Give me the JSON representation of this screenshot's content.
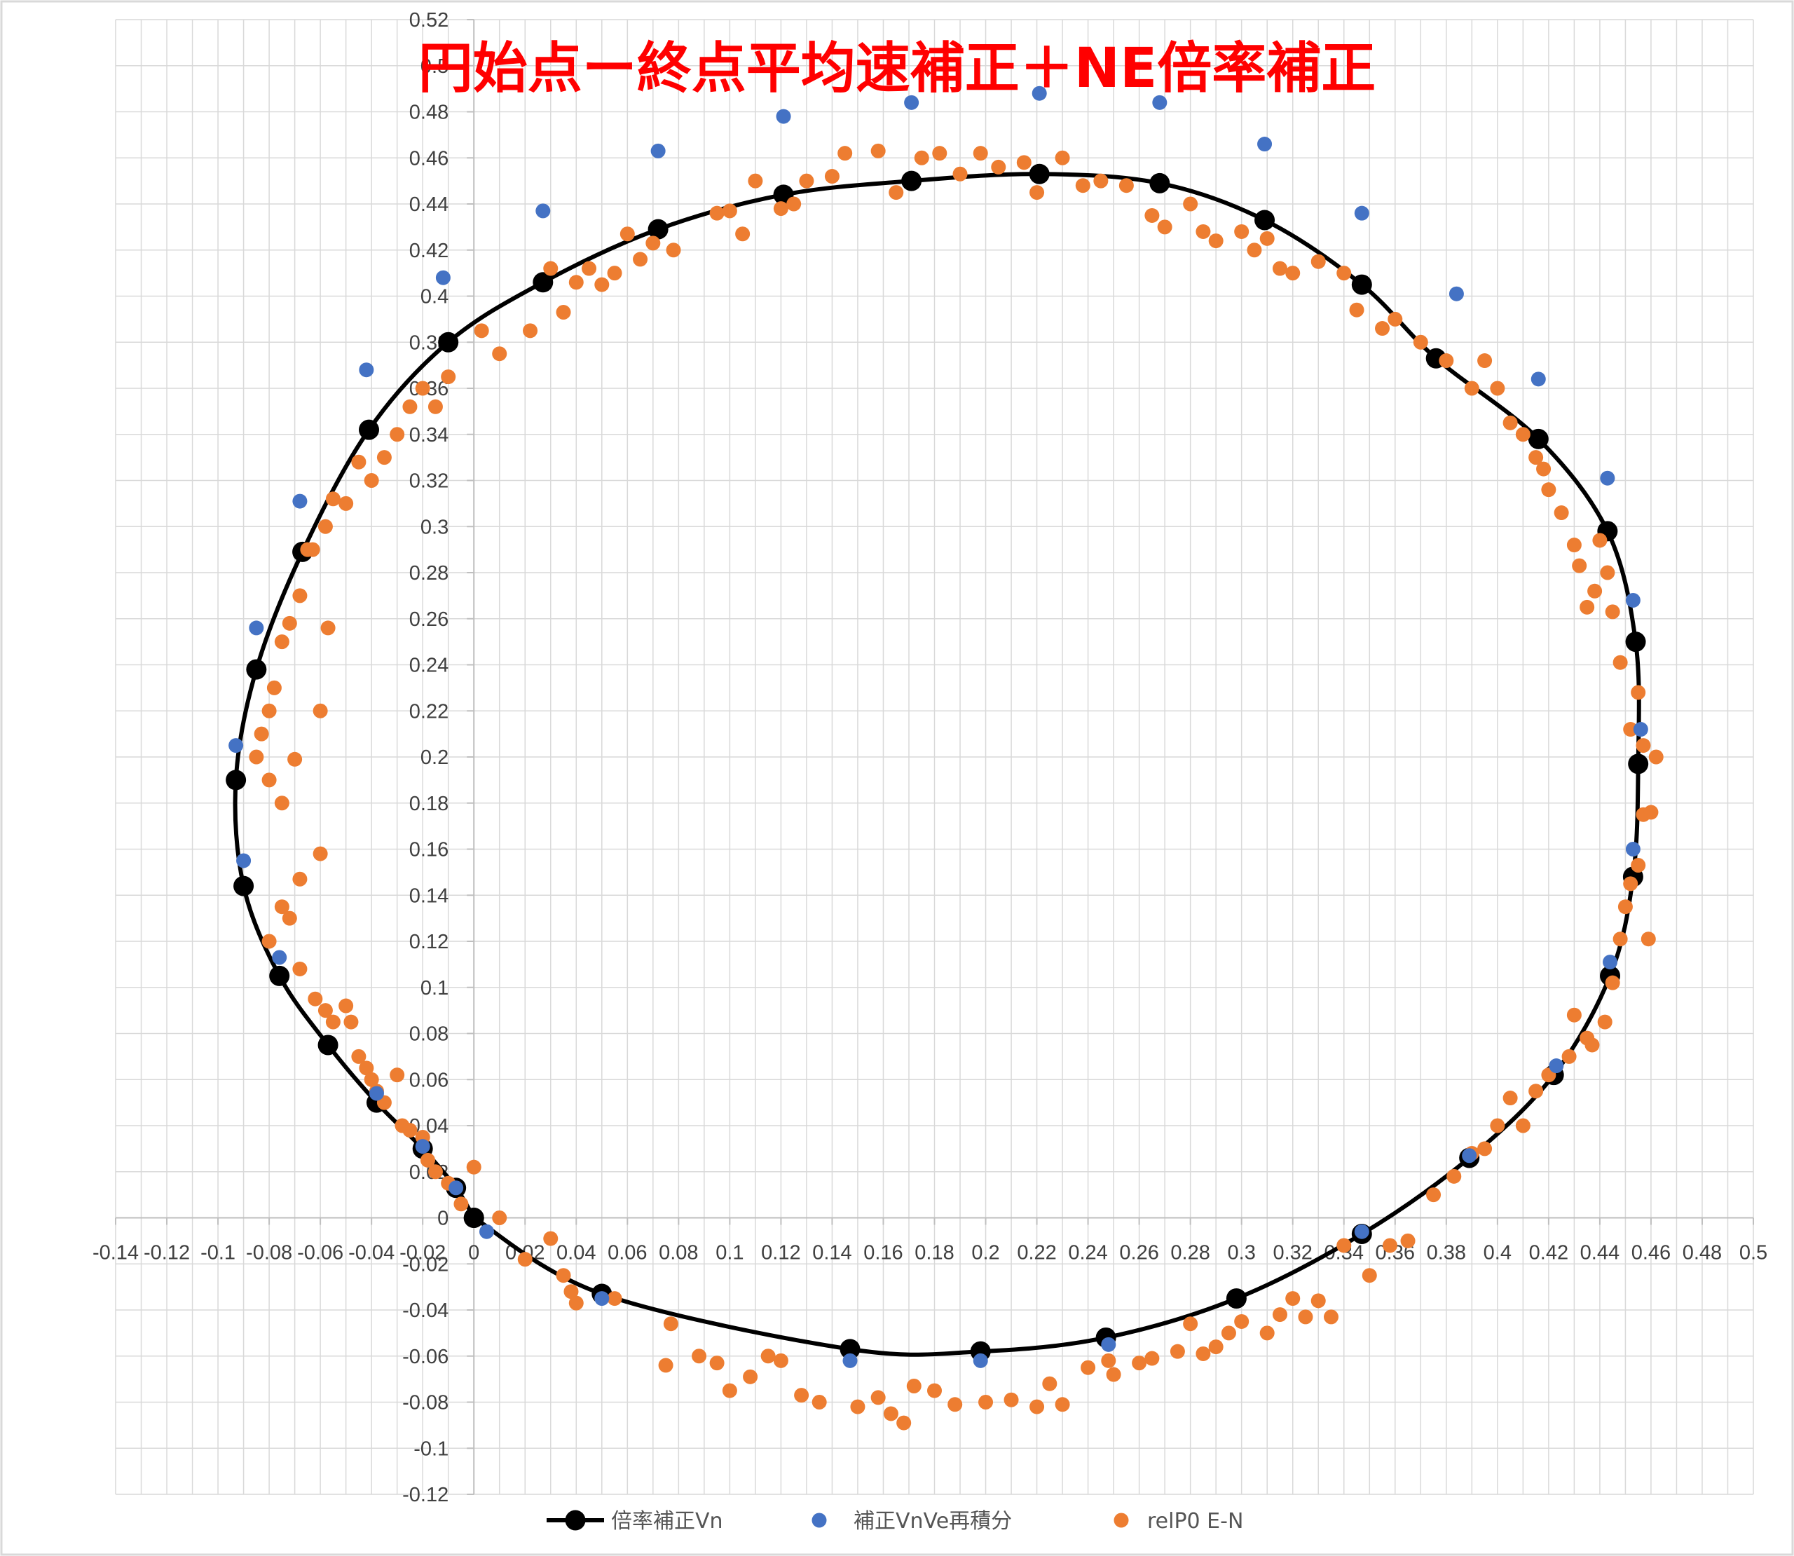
{
  "chart_data": {
    "type": "scatter",
    "title": "円始点ー終点平均速補正＋NE倍率補正",
    "xlim": [
      -0.14,
      0.5
    ],
    "ylim": [
      -0.12,
      0.52
    ],
    "x_ticks": [
      "-0.14",
      "-0.12",
      "-0.1",
      "-0.08",
      "-0.06",
      "-0.04",
      "-0.02",
      "0",
      "0.02",
      "0.04",
      "0.06",
      "0.08",
      "0.1",
      "0.12",
      "0.14",
      "0.16",
      "0.18",
      "0.2",
      "0.22",
      "0.24",
      "0.26",
      "0.28",
      "0.3",
      "0.32",
      "0.34",
      "0.36",
      "0.38",
      "0.4",
      "0.42",
      "0.44",
      "0.46",
      "0.48",
      "0.5"
    ],
    "y_ticks": [
      "-0.12",
      "-0.1",
      "-0.08",
      "-0.06",
      "-0.04",
      "-0.02",
      "0",
      "0.02",
      "0.04",
      "0.06",
      "0.08",
      "0.1",
      "0.12",
      "0.14",
      "0.16",
      "0.18",
      "0.2",
      "0.22",
      "0.24",
      "0.26",
      "0.28",
      "0.3",
      "0.32",
      "0.34",
      "0.36",
      "0.38",
      "0.4",
      "0.42",
      "0.44",
      "0.46",
      "0.48",
      "0.5",
      "0.52"
    ],
    "grid": true,
    "legend": "bottom",
    "series": [
      {
        "name": "倍率補正Vn",
        "type": "line-with-markers",
        "color": "#000000",
        "points": [
          [
            0,
            0
          ],
          [
            0.05,
            -0.033
          ],
          [
            0.147,
            -0.057
          ],
          [
            0.198,
            -0.058
          ],
          [
            0.247,
            -0.052
          ],
          [
            0.298,
            -0.035
          ],
          [
            0.347,
            -0.007
          ],
          [
            0.389,
            0.026
          ],
          [
            0.422,
            0.062
          ],
          [
            0.444,
            0.105
          ],
          [
            0.453,
            0.148
          ],
          [
            0.455,
            0.197
          ],
          [
            0.454,
            0.25
          ],
          [
            0.443,
            0.298
          ],
          [
            0.416,
            0.338
          ],
          [
            0.376,
            0.373
          ],
          [
            0.347,
            0.405
          ],
          [
            0.309,
            0.433
          ],
          [
            0.268,
            0.449
          ],
          [
            0.221,
            0.453
          ],
          [
            0.171,
            0.45
          ],
          [
            0.121,
            0.444
          ],
          [
            0.072,
            0.429
          ],
          [
            0.027,
            0.406
          ],
          [
            -0.01,
            0.38
          ],
          [
            -0.041,
            0.342
          ],
          [
            -0.067,
            0.289
          ],
          [
            -0.085,
            0.238
          ],
          [
            -0.093,
            0.19
          ],
          [
            -0.09,
            0.144
          ],
          [
            -0.076,
            0.105
          ],
          [
            -0.057,
            0.075
          ],
          [
            -0.038,
            0.05
          ],
          [
            -0.02,
            0.03
          ],
          [
            -0.007,
            0.013
          ],
          [
            0,
            0
          ]
        ]
      },
      {
        "name": "補正VnVe再積分",
        "type": "scatter",
        "color": "#4472c4",
        "points": [
          [
            0.005,
            -0.006
          ],
          [
            0.05,
            -0.035
          ],
          [
            0.147,
            -0.062
          ],
          [
            0.198,
            -0.062
          ],
          [
            0.248,
            -0.055
          ],
          [
            0.347,
            -0.006
          ],
          [
            0.389,
            0.027
          ],
          [
            0.423,
            0.066
          ],
          [
            0.444,
            0.111
          ],
          [
            0.453,
            0.16
          ],
          [
            0.456,
            0.212
          ],
          [
            0.453,
            0.268
          ],
          [
            0.443,
            0.321
          ],
          [
            0.416,
            0.364
          ],
          [
            0.384,
            0.401
          ],
          [
            0.347,
            0.436
          ],
          [
            0.309,
            0.466
          ],
          [
            0.268,
            0.484
          ],
          [
            0.221,
            0.488
          ],
          [
            0.171,
            0.484
          ],
          [
            0.121,
            0.478
          ],
          [
            0.072,
            0.463
          ],
          [
            0.027,
            0.437
          ],
          [
            -0.012,
            0.408
          ],
          [
            -0.042,
            0.368
          ],
          [
            -0.068,
            0.311
          ],
          [
            -0.085,
            0.256
          ],
          [
            -0.093,
            0.205
          ],
          [
            -0.09,
            0.155
          ],
          [
            -0.076,
            0.113
          ],
          [
            -0.038,
            0.054
          ],
          [
            -0.02,
            0.031
          ],
          [
            -0.007,
            0.013
          ]
        ]
      },
      {
        "name": "relP0 E-N",
        "type": "scatter",
        "color": "#ed7d31",
        "points": [
          [
            0,
            0.022
          ],
          [
            0.01,
            0
          ],
          [
            0.02,
            -0.018
          ],
          [
            0.03,
            -0.009
          ],
          [
            0.035,
            -0.025
          ],
          [
            0.038,
            -0.032
          ],
          [
            0.04,
            -0.037
          ],
          [
            0.055,
            -0.035
          ],
          [
            0.077,
            -0.046
          ],
          [
            0.075,
            -0.064
          ],
          [
            0.088,
            -0.06
          ],
          [
            0.095,
            -0.063
          ],
          [
            0.1,
            -0.075
          ],
          [
            0.108,
            -0.069
          ],
          [
            0.115,
            -0.06
          ],
          [
            0.12,
            -0.062
          ],
          [
            0.128,
            -0.077
          ],
          [
            0.135,
            -0.08
          ],
          [
            0.15,
            -0.082
          ],
          [
            0.158,
            -0.078
          ],
          [
            0.163,
            -0.085
          ],
          [
            0.168,
            -0.089
          ],
          [
            0.172,
            -0.073
          ],
          [
            0.18,
            -0.075
          ],
          [
            0.188,
            -0.081
          ],
          [
            0.2,
            -0.08
          ],
          [
            0.21,
            -0.079
          ],
          [
            0.22,
            -0.082
          ],
          [
            0.225,
            -0.072
          ],
          [
            0.23,
            -0.081
          ],
          [
            0.24,
            -0.065
          ],
          [
            0.248,
            -0.062
          ],
          [
            0.25,
            -0.068
          ],
          [
            0.26,
            -0.063
          ],
          [
            0.265,
            -0.061
          ],
          [
            0.275,
            -0.058
          ],
          [
            0.28,
            -0.046
          ],
          [
            0.285,
            -0.059
          ],
          [
            0.29,
            -0.056
          ],
          [
            0.295,
            -0.05
          ],
          [
            0.3,
            -0.045
          ],
          [
            0.31,
            -0.05
          ],
          [
            0.315,
            -0.042
          ],
          [
            0.32,
            -0.035
          ],
          [
            0.325,
            -0.043
          ],
          [
            0.33,
            -0.036
          ],
          [
            0.335,
            -0.043
          ],
          [
            0.34,
            -0.012
          ],
          [
            0.35,
            -0.025
          ],
          [
            0.358,
            -0.012
          ],
          [
            0.365,
            -0.01
          ],
          [
            0.375,
            0.01
          ],
          [
            0.383,
            0.018
          ],
          [
            0.39,
            0.028
          ],
          [
            0.395,
            0.03
          ],
          [
            0.4,
            0.04
          ],
          [
            0.405,
            0.052
          ],
          [
            0.41,
            0.04
          ],
          [
            0.415,
            0.055
          ],
          [
            0.42,
            0.062
          ],
          [
            0.428,
            0.07
          ],
          [
            0.43,
            0.088
          ],
          [
            0.435,
            0.078
          ],
          [
            0.437,
            0.075
          ],
          [
            0.442,
            0.085
          ],
          [
            0.445,
            0.102
          ],
          [
            0.448,
            0.121
          ],
          [
            0.45,
            0.135
          ],
          [
            0.452,
            0.145
          ],
          [
            0.455,
            0.153
          ],
          [
            0.457,
            0.175
          ],
          [
            0.459,
            0.121
          ],
          [
            0.46,
            0.176
          ],
          [
            0.462,
            0.2
          ],
          [
            0.457,
            0.205
          ],
          [
            0.455,
            0.228
          ],
          [
            0.452,
            0.212
          ],
          [
            0.448,
            0.241
          ],
          [
            0.445,
            0.263
          ],
          [
            0.443,
            0.28
          ],
          [
            0.44,
            0.294
          ],
          [
            0.438,
            0.272
          ],
          [
            0.435,
            0.265
          ],
          [
            0.432,
            0.283
          ],
          [
            0.43,
            0.292
          ],
          [
            0.425,
            0.306
          ],
          [
            0.42,
            0.316
          ],
          [
            0.418,
            0.325
          ],
          [
            0.415,
            0.33
          ],
          [
            0.41,
            0.34
          ],
          [
            0.405,
            0.345
          ],
          [
            0.4,
            0.36
          ],
          [
            0.395,
            0.372
          ],
          [
            0.39,
            0.36
          ],
          [
            0.38,
            0.372
          ],
          [
            0.37,
            0.38
          ],
          [
            0.36,
            0.39
          ],
          [
            0.355,
            0.386
          ],
          [
            0.345,
            0.394
          ],
          [
            0.34,
            0.41
          ],
          [
            0.33,
            0.415
          ],
          [
            0.32,
            0.41
          ],
          [
            0.315,
            0.412
          ],
          [
            0.31,
            0.425
          ],
          [
            0.305,
            0.42
          ],
          [
            0.3,
            0.428
          ],
          [
            0.29,
            0.424
          ],
          [
            0.285,
            0.428
          ],
          [
            0.28,
            0.44
          ],
          [
            0.27,
            0.43
          ],
          [
            0.265,
            0.435
          ],
          [
            0.255,
            0.448
          ],
          [
            0.245,
            0.45
          ],
          [
            0.238,
            0.448
          ],
          [
            0.23,
            0.46
          ],
          [
            0.22,
            0.445
          ],
          [
            0.215,
            0.458
          ],
          [
            0.205,
            0.456
          ],
          [
            0.198,
            0.462
          ],
          [
            0.19,
            0.453
          ],
          [
            0.182,
            0.462
          ],
          [
            0.175,
            0.46
          ],
          [
            0.165,
            0.445
          ],
          [
            0.158,
            0.463
          ],
          [
            0.145,
            0.462
          ],
          [
            0.14,
            0.452
          ],
          [
            0.13,
            0.45
          ],
          [
            0.125,
            0.44
          ],
          [
            0.12,
            0.438
          ],
          [
            0.11,
            0.45
          ],
          [
            0.105,
            0.427
          ],
          [
            0.1,
            0.437
          ],
          [
            0.095,
            0.436
          ],
          [
            0.078,
            0.42
          ],
          [
            0.07,
            0.423
          ],
          [
            0.065,
            0.416
          ],
          [
            0.06,
            0.427
          ],
          [
            0.055,
            0.41
          ],
          [
            0.05,
            0.405
          ],
          [
            0.045,
            0.412
          ],
          [
            0.04,
            0.406
          ],
          [
            0.035,
            0.393
          ],
          [
            0.03,
            0.412
          ],
          [
            0.022,
            0.385
          ],
          [
            0.01,
            0.375
          ],
          [
            0.003,
            0.385
          ],
          [
            -0.01,
            0.365
          ],
          [
            -0.015,
            0.352
          ],
          [
            -0.02,
            0.36
          ],
          [
            -0.025,
            0.352
          ],
          [
            -0.03,
            0.34
          ],
          [
            -0.035,
            0.33
          ],
          [
            -0.04,
            0.32
          ],
          [
            -0.045,
            0.328
          ],
          [
            -0.05,
            0.31
          ],
          [
            -0.055,
            0.312
          ],
          [
            -0.058,
            0.3
          ],
          [
            -0.063,
            0.29
          ],
          [
            -0.065,
            0.29
          ],
          [
            -0.068,
            0.27
          ],
          [
            -0.072,
            0.258
          ],
          [
            -0.075,
            0.25
          ],
          [
            -0.078,
            0.23
          ],
          [
            -0.08,
            0.22
          ],
          [
            -0.083,
            0.21
          ],
          [
            -0.085,
            0.2
          ],
          [
            -0.08,
            0.19
          ],
          [
            -0.075,
            0.18
          ],
          [
            -0.07,
            0.199
          ],
          [
            -0.06,
            0.22
          ],
          [
            -0.057,
            0.256
          ],
          [
            -0.06,
            0.158
          ],
          [
            -0.068,
            0.147
          ],
          [
            -0.072,
            0.13
          ],
          [
            -0.075,
            0.135
          ],
          [
            -0.08,
            0.12
          ],
          [
            -0.068,
            0.108
          ],
          [
            -0.062,
            0.095
          ],
          [
            -0.058,
            0.09
          ],
          [
            -0.055,
            0.085
          ],
          [
            -0.05,
            0.092
          ],
          [
            -0.048,
            0.085
          ],
          [
            -0.045,
            0.07
          ],
          [
            -0.042,
            0.065
          ],
          [
            -0.04,
            0.06
          ],
          [
            -0.038,
            0.055
          ],
          [
            -0.035,
            0.05
          ],
          [
            -0.03,
            0.062
          ],
          [
            -0.028,
            0.04
          ],
          [
            -0.025,
            0.038
          ],
          [
            -0.02,
            0.035
          ],
          [
            -0.018,
            0.025
          ],
          [
            -0.015,
            0.02
          ],
          [
            -0.01,
            0.015
          ],
          [
            -0.005,
            0.006
          ]
        ]
      }
    ]
  }
}
